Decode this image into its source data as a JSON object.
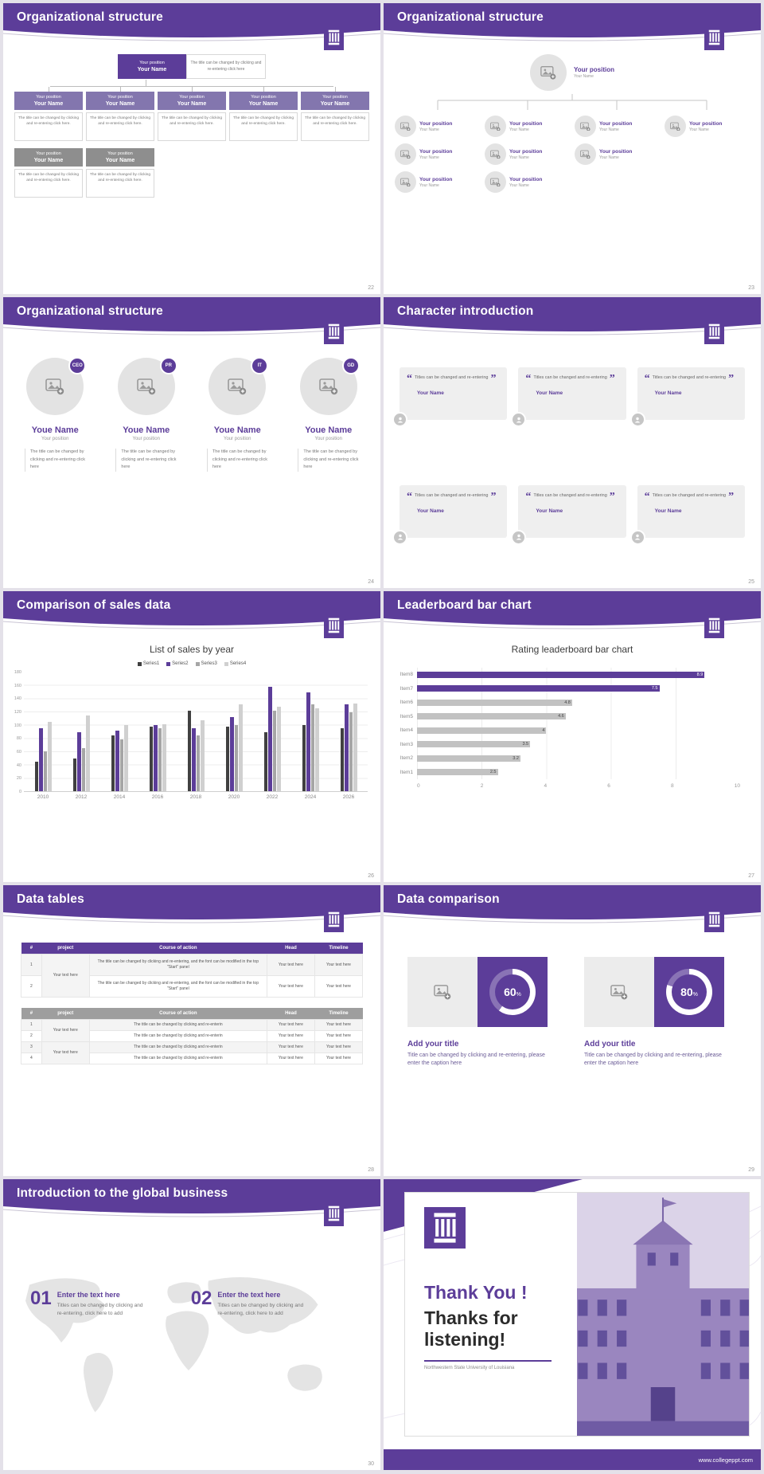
{
  "theme": {
    "purple": "#5C3D99",
    "purple_mid": "#8376AE",
    "gray_box": "#8E8E8E",
    "bar_gray": "#C2C2C2"
  },
  "slides": {
    "s22": {
      "title": "Organizational structure",
      "page": "22",
      "root": {
        "position": "Your position",
        "name": "Your Name"
      },
      "root_note": "The title can be changed by clicking and re-entering click here",
      "level2": [
        {
          "position": "Your position",
          "name": "Your Name",
          "note": "The title can be changed by clicking and re-entering click here."
        },
        {
          "position": "Your position",
          "name": "Your Name",
          "note": "The title can be changed by clicking and re-entering click here."
        },
        {
          "position": "Your position",
          "name": "Your Name",
          "note": "The title can be changed by clicking and re-entering click here."
        },
        {
          "position": "Your position",
          "name": "Your Name",
          "note": "The title can be changed by clicking and re-entering click here."
        },
        {
          "position": "Your position",
          "name": "Your Name",
          "note": "The title can be changed by clicking and re-entering click here."
        }
      ],
      "level3": [
        {
          "position": "Your position",
          "name": "Your Name",
          "note": "The title can be changed by clicking and re-entering click here."
        },
        {
          "position": "Your position",
          "name": "Your Name",
          "note": "The title can be changed by clicking and re-entering click here."
        }
      ]
    },
    "s23": {
      "title": "Organizational structure",
      "page": "23",
      "root": {
        "position": "Your position",
        "name": "Your Name"
      },
      "row1": [
        {
          "position": "Your position",
          "name": "Your Name"
        },
        {
          "position": "Your position",
          "name": "Your Name"
        },
        {
          "position": "Your position",
          "name": "Your Name"
        },
        {
          "position": "Your position",
          "name": "Your Name"
        }
      ],
      "row2": [
        {
          "position": "Your position",
          "name": "Your Name"
        },
        {
          "position": "Your position",
          "name": "Your Name"
        },
        {
          "position": "Your position",
          "name": "Your Name"
        }
      ],
      "row3": [
        {
          "position": "Your position",
          "name": "Your Name"
        },
        {
          "position": "Your position",
          "name": "Your Name"
        }
      ]
    },
    "s24": {
      "title": "Organizational structure",
      "page": "24",
      "members": [
        {
          "badge": "CEO",
          "name": "Youe Name",
          "position": "Your position",
          "note": "The title can be changed by clicking and re-entering click here"
        },
        {
          "badge": "PR",
          "name": "Youe Name",
          "position": "Your position",
          "note": "The title can be changed by clicking and re-entering click here"
        },
        {
          "badge": "IT",
          "name": "Youe Name",
          "position": "Your position",
          "note": "The title can be changed by clicking and re-entering click here"
        },
        {
          "badge": "GD",
          "name": "Youe Name",
          "position": "Your position",
          "note": "The title can be changed by clicking and re-entering click here"
        }
      ]
    },
    "s25": {
      "title": "Character introduction",
      "page": "25",
      "cards": [
        {
          "quote_open": "“",
          "quote_close": "”",
          "text": "Titles can be changed and re-entering",
          "name": "Your Name"
        },
        {
          "quote_open": "“",
          "quote_close": "”",
          "text": "Titles can be changed and re-entering",
          "name": "Your Name"
        },
        {
          "quote_open": "“",
          "quote_close": "”",
          "text": "Titles can be changed and re-entering",
          "name": "Your Name"
        },
        {
          "quote_open": "“",
          "quote_close": "”",
          "text": "Titles can be changed and re-entering",
          "name": "Your Name"
        },
        {
          "quote_open": "“",
          "quote_close": "”",
          "text": "Titles can be changed and re-entering",
          "name": "Your Name"
        },
        {
          "quote_open": "“",
          "quote_close": "”",
          "text": "Titles can be changed and re-entering",
          "name": "Your Name"
        }
      ]
    },
    "s26": {
      "title": "Comparison of sales data",
      "page": "26"
    },
    "s27": {
      "title": "Leaderboard bar chart",
      "page": "27"
    },
    "s28": {
      "title": "Data tables",
      "page": "28",
      "table1": {
        "headers": [
          "#",
          "project",
          "Course of action",
          "Head",
          "Timeline"
        ],
        "nums": [
          "1",
          "2"
        ],
        "project": "Your text here",
        "course": "The title can be changed by clicking and re-entering, and the font can be modified in the top \"Start\" panel",
        "head": "Your text here",
        "timeline": "Your text here"
      },
      "table2": {
        "headers": [
          "#",
          "project",
          "Course of action",
          "Head",
          "Timeline"
        ],
        "nums": [
          "1",
          "2",
          "3",
          "4"
        ],
        "project": "Your text here",
        "course": "The title can be changed by clicking and re-enterin",
        "head": "Your text here",
        "timeline": "Your text here"
      }
    },
    "s29": {
      "title": "Data comparison",
      "page": "29",
      "items": [
        {
          "percent": "60",
          "percent_symbol": "%",
          "title": "Add your title",
          "caption": "Title can be changed by clicking and re-entering, please enter the caption here"
        },
        {
          "percent": "80",
          "percent_symbol": "%",
          "title": "Add your title",
          "caption": "Title can be changed by clicking and re-entering, please enter the caption here"
        }
      ]
    },
    "s30": {
      "title": "Introduction to the global business",
      "page": "30",
      "items": [
        {
          "num": "01",
          "title": "Enter the text here",
          "text": "Titles can be changed by clicking and re-entering, click here to add"
        },
        {
          "num": "02",
          "title": "Enter the text here",
          "text": "Titles can be changed by clicking and re-entering, click here to add"
        }
      ]
    },
    "s31": {
      "title1": "Thank You !",
      "title2": "Thanks for listening!",
      "subtitle": "Northwestern State University of Louisiana",
      "footer": "www.collegeppt.com"
    }
  },
  "chart_data": [
    {
      "type": "bar",
      "slide": 26,
      "title": "List of sales by year",
      "categories": [
        "2010",
        "2012",
        "2014",
        "2016",
        "2018",
        "2020",
        "2022",
        "2024",
        "2026"
      ],
      "series": [
        {
          "name": "Series1",
          "color": "#404040",
          "values": [
            45,
            50,
            85,
            98,
            122,
            98,
            90,
            100,
            96
          ]
        },
        {
          "name": "Series2",
          "color": "#5C3D99",
          "values": [
            95,
            90,
            92,
            100,
            95,
            112,
            158,
            150,
            132
          ]
        },
        {
          "name": "Series3",
          "color": "#A6A6A6",
          "values": [
            60,
            65,
            78,
            95,
            85,
            100,
            122,
            132,
            120
          ]
        },
        {
          "name": "Series4",
          "color": "#D0D0D0",
          "values": [
            105,
            115,
            100,
            102,
            108,
            132,
            128,
            126,
            133
          ]
        }
      ],
      "ylim": [
        0,
        180
      ],
      "yticks": [
        0,
        20,
        40,
        60,
        80,
        100,
        120,
        140,
        160,
        180
      ],
      "legend_position": "top",
      "grid": true
    },
    {
      "type": "bar-horizontal",
      "slide": 27,
      "title": "Rating leaderboard bar chart",
      "items": [
        {
          "label": "Item8",
          "value": 8.9,
          "highlight": true
        },
        {
          "label": "Item7",
          "value": 7.5,
          "highlight": true
        },
        {
          "label": "Item6",
          "value": 4.8,
          "highlight": false
        },
        {
          "label": "Item5",
          "value": 4.6,
          "highlight": false
        },
        {
          "label": "Item4",
          "value": 4,
          "highlight": false
        },
        {
          "label": "Item3",
          "value": 3.5,
          "highlight": false
        },
        {
          "label": "Item2",
          "value": 3.2,
          "highlight": false
        },
        {
          "label": "Item1",
          "value": 2.5,
          "highlight": false
        }
      ],
      "xlim": [
        0,
        10
      ],
      "xticks": [
        0,
        2,
        4,
        6,
        8,
        10
      ],
      "grid": true
    }
  ]
}
